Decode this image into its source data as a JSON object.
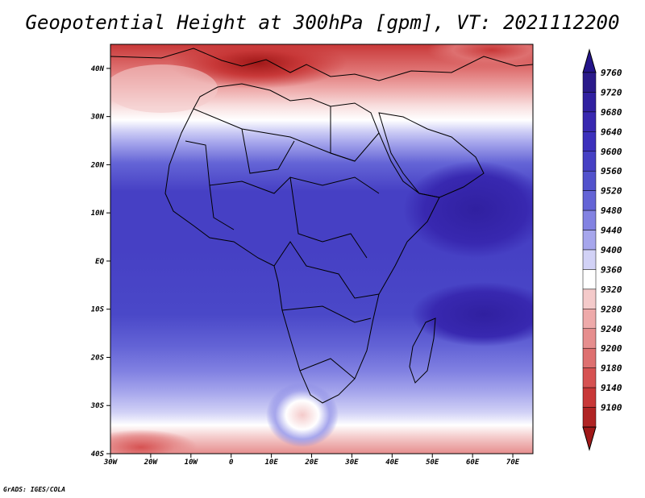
{
  "title": "Geopotential Height at 300hPa [gpm], VT: 2021112200",
  "credit": "GrADS: IGES/COLA",
  "map": {
    "region": "Africa",
    "lon_range": [
      -30,
      75
    ],
    "lat_range": [
      -40,
      45
    ],
    "lat_ticks": [
      {
        "value": 40,
        "label": "40N"
      },
      {
        "value": 30,
        "label": "30N"
      },
      {
        "value": 20,
        "label": "20N"
      },
      {
        "value": 10,
        "label": "10N"
      },
      {
        "value": 0,
        "label": "EQ"
      },
      {
        "value": -10,
        "label": "10S"
      },
      {
        "value": -20,
        "label": "20S"
      },
      {
        "value": -30,
        "label": "30S"
      },
      {
        "value": -40,
        "label": "40S"
      }
    ],
    "lon_ticks": [
      {
        "value": -30,
        "label": "30W"
      },
      {
        "value": -20,
        "label": "20W"
      },
      {
        "value": -10,
        "label": "10W"
      },
      {
        "value": 0,
        "label": "0"
      },
      {
        "value": 10,
        "label": "10E"
      },
      {
        "value": 20,
        "label": "20E"
      },
      {
        "value": 30,
        "label": "30E"
      },
      {
        "value": 40,
        "label": "40E"
      },
      {
        "value": 50,
        "label": "50E"
      },
      {
        "value": 60,
        "label": "60E"
      },
      {
        "value": 70,
        "label": "70E"
      }
    ]
  },
  "colorbar": {
    "levels": [
      {
        "label": "9760",
        "color": "#2a1a8a"
      },
      {
        "label": "9720",
        "color": "#3020a0"
      },
      {
        "label": "9680",
        "color": "#3828b0"
      },
      {
        "label": "9640",
        "color": "#3c30bc"
      },
      {
        "label": "9600",
        "color": "#4640c4"
      },
      {
        "label": "9560",
        "color": "#5252cc"
      },
      {
        "label": "9520",
        "color": "#6464d6"
      },
      {
        "label": "9480",
        "color": "#8282e2"
      },
      {
        "label": "9440",
        "color": "#a6a6ec"
      },
      {
        "label": "9400",
        "color": "#d2d2f6"
      },
      {
        "label": "9360",
        "color": "#ffffff"
      },
      {
        "label": "9320",
        "color": "#f4caca"
      },
      {
        "label": "9280",
        "color": "#eeaaaa"
      },
      {
        "label": "9240",
        "color": "#e68e8e"
      },
      {
        "label": "9200",
        "color": "#de7070"
      },
      {
        "label": "9180",
        "color": "#d65252"
      },
      {
        "label": "9140",
        "color": "#c83838"
      },
      {
        "label": "9100",
        "color": "#b02424"
      }
    ],
    "top_color": "#24148a",
    "bottom_color": "#a01818"
  }
}
